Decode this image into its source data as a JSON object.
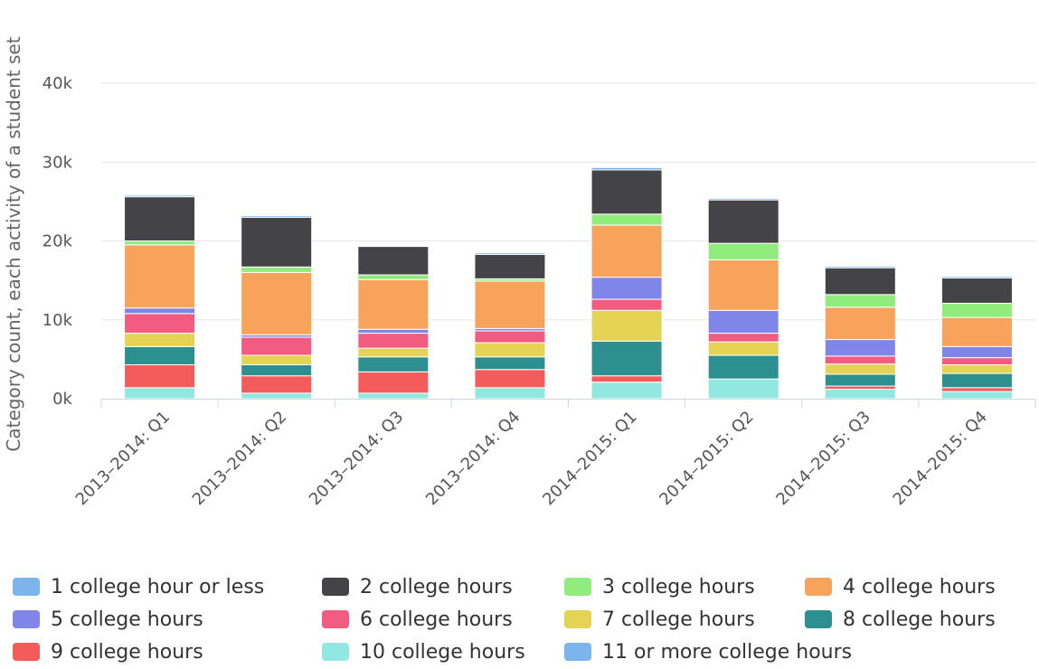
{
  "chart_data": {
    "type": "bar",
    "stacked": true,
    "title": "",
    "xlabel": "",
    "ylabel": "Category count, each activity of a student set",
    "ylim": [
      0,
      40000
    ],
    "yticks": [
      0,
      10000,
      20000,
      30000,
      40000
    ],
    "ytick_labels": [
      "0k",
      "10k",
      "20k",
      "30k",
      "40k"
    ],
    "grid": true,
    "legend_position": "bottom",
    "categories": [
      "2013–2014: Q1",
      "2013–2014: Q2",
      "2013–2014: Q3",
      "2013–2014: Q4",
      "2014–2015: Q1",
      "2014–2015: Q2",
      "2014–2015: Q3",
      "2014–2015: Q4"
    ],
    "series": [
      {
        "name": "10 college hours",
        "color": "#91e8e1",
        "values": [
          1400,
          700,
          700,
          1400,
          2100,
          2500,
          1200,
          900
        ]
      },
      {
        "name": "9 college hours",
        "color": "#f45b5b",
        "values": [
          2900,
          2200,
          2700,
          2300,
          800,
          0,
          400,
          500
        ]
      },
      {
        "name": "8 college hours",
        "color": "#2b908f",
        "values": [
          2300,
          1400,
          1900,
          1600,
          4400,
          3000,
          1500,
          1800
        ]
      },
      {
        "name": "7 college hours",
        "color": "#e4d354",
        "values": [
          1700,
          1200,
          1100,
          1800,
          3900,
          1700,
          1300,
          1100
        ]
      },
      {
        "name": "6 college hours",
        "color": "#f15c80",
        "values": [
          2500,
          2300,
          1900,
          1500,
          1400,
          1100,
          1000,
          900
        ]
      },
      {
        "name": "5 college hours",
        "color": "#8085e9",
        "values": [
          700,
          300,
          500,
          300,
          2800,
          2900,
          2100,
          1400
        ]
      },
      {
        "name": "4 college hours",
        "color": "#f7a35c",
        "values": [
          8000,
          7900,
          6300,
          6000,
          6600,
          6400,
          4100,
          3700
        ]
      },
      {
        "name": "3 college hours",
        "color": "#90ed7d",
        "values": [
          500,
          700,
          600,
          300,
          1400,
          2100,
          1600,
          1800
        ]
      },
      {
        "name": "2 college hours",
        "color": "#434348",
        "values": [
          5600,
          6300,
          3600,
          3100,
          5600,
          5500,
          3400,
          3200
        ]
      },
      {
        "name": "1 college hour or less",
        "color": "#7cb5ec",
        "values": [
          200,
          200,
          0,
          200,
          300,
          200,
          200,
          200
        ]
      },
      {
        "name": "11 or more college hours",
        "color": "#7cb5ec",
        "values": [
          0,
          0,
          0,
          0,
          0,
          0,
          0,
          0
        ]
      }
    ],
    "legend_order": [
      "1 college hour or less",
      "2 college hours",
      "3 college hours",
      "4 college hours",
      "5 college hours",
      "6 college hours",
      "7 college hours",
      "8 college hours",
      "9 college hours",
      "10 college hours",
      "11 or more college hours"
    ]
  }
}
